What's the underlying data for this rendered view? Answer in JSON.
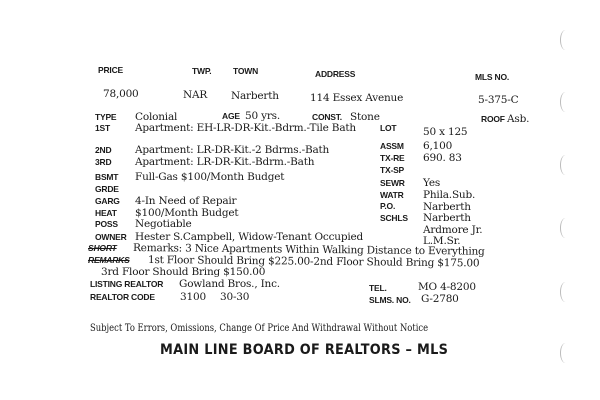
{
  "header": {
    "price_label": "PRICE",
    "twp_label": "TWP.",
    "town_label": "TOWN",
    "address_label": "ADDRESS",
    "mls_label": "MLS NO.",
    "price": "78,000",
    "twp": "NAR",
    "town": "Narberth",
    "address": "114 Essex Avenue",
    "mls": "5-375-C"
  },
  "left": [
    {
      "label": "TYPE",
      "value": "Colonial"
    },
    {
      "label": "1ST",
      "value": "Apartment: EH-LR-DR-Kit.-Bdrm.-Tile Bath"
    },
    {
      "label": "2ND",
      "value": "Apartment: LR-DR-Kit.-2 Bdrms.-Bath"
    },
    {
      "label": "3RD",
      "value": "Apartment: LR-DR-Kit.-Bdrm.-Bath"
    },
    {
      "label": "BSMT",
      "value": "Full-Gas $100/Month Budget"
    },
    {
      "label": "GRDE",
      "value": ""
    },
    {
      "label": "GARG",
      "value": "4-In Need of Repair"
    },
    {
      "label": "HEAT",
      "value": "$100/Month Budget"
    },
    {
      "label": "POSS",
      "value": "Negotiable"
    },
    {
      "label": "OWNER",
      "value": "Hester S.Campbell, Widow-Tenant Occupied"
    }
  ],
  "age": {
    "label": "AGE",
    "value": "50 yrs."
  },
  "const": {
    "label": "CONST.",
    "value": "Stone"
  },
  "roof": {
    "label": "ROOF",
    "value": "Asb."
  },
  "right": [
    {
      "label": "LOT",
      "value": "50 x 125"
    },
    {
      "label": "ASSM",
      "value": "6,100"
    },
    {
      "label": "TX-RE",
      "value": "690. 83"
    },
    {
      "label": "TX-SP",
      "value": ""
    },
    {
      "label": "SEWR",
      "value": "Yes"
    },
    {
      "label": "WATR",
      "value": "Phila.Sub."
    },
    {
      "label": "P.O.",
      "value": "Narberth"
    },
    {
      "label": "SCHLS",
      "value": "Narberth"
    }
  ],
  "schools_extra": [
    "Ardmore Jr.",
    "L.M.Sr."
  ],
  "remarks": {
    "short_label": "SHORT",
    "remarks_label": "REMARKS",
    "lines": [
      "Remarks: 3 Nice Apartments Within Walking Distance to Everything",
      "1st Floor Should Bring $225.00-2nd Floor Should Bring $175.00",
      "3rd Floor Should Bring $150.00"
    ]
  },
  "realtor": {
    "listing_label": "LISTING REALTOR",
    "listing": "Gowland Bros., Inc.",
    "code_label": "REALTOR CODE",
    "code": "3100",
    "code2": "30-30",
    "tel_label": "TEL.",
    "tel": "MO 4-8200",
    "slms_label": "SLMS. NO.",
    "slms": "G-2780"
  },
  "footer": {
    "disclaimer": "Subject To Errors, Omissions, Change Of Price And Withdrawal Without Notice",
    "board": "MAIN LINE BOARD OF REALTORS – MLS"
  }
}
